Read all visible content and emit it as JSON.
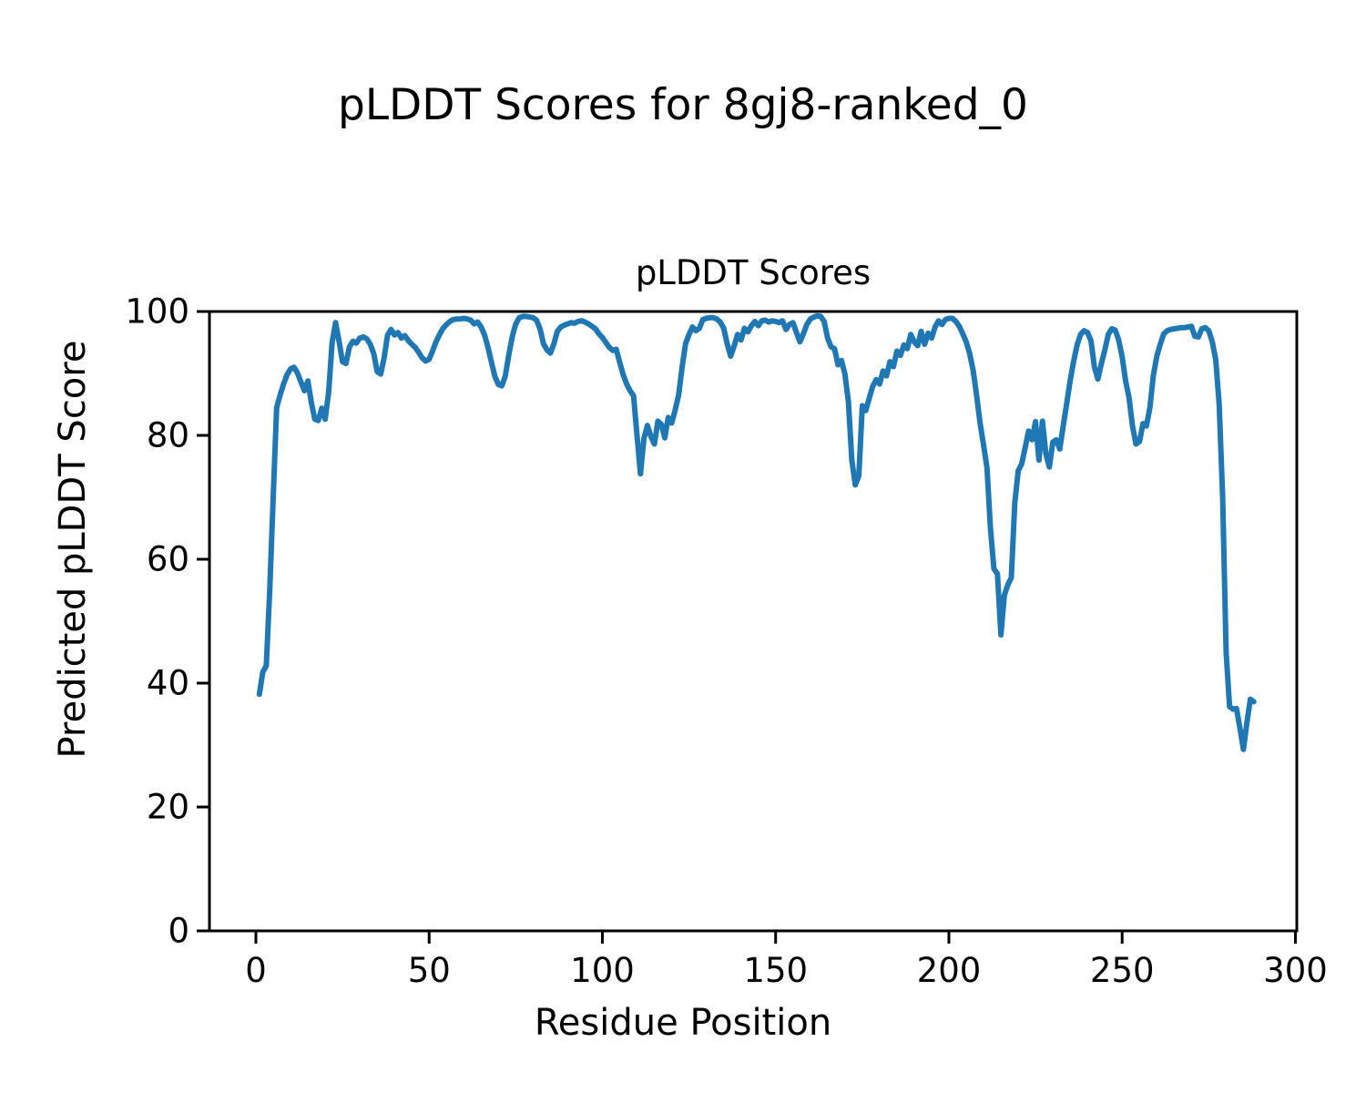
{
  "figure": {
    "suptitle": "pLDDT Scores for 8gj8-ranked_0",
    "background_color": "#ffffff"
  },
  "axes": {
    "title": "pLDDT Scores",
    "xlabel": "Residue Position",
    "ylabel": "Predicted pLDDT Score",
    "xticks": [
      0,
      50,
      100,
      150,
      200,
      250,
      300
    ],
    "yticks": [
      0,
      20,
      40,
      60,
      80,
      100
    ],
    "spine_color": "#000000",
    "tick_color": "#000000"
  },
  "chart_data": {
    "type": "line",
    "title": "pLDDT Scores",
    "suptitle": "pLDDT Scores for 8gj8-ranked_0",
    "xlabel": "Residue Position",
    "ylabel": "Predicted pLDDT Score",
    "line_color": "#1f77b4",
    "grid": false,
    "legend": null,
    "xlim": [
      -13.4,
      300.4
    ],
    "ylim": [
      0,
      100
    ],
    "xticks": [
      0,
      50,
      100,
      150,
      200,
      250,
      300
    ],
    "yticks": [
      0,
      20,
      40,
      60,
      80,
      100
    ],
    "x_start": 1,
    "x_step": 1,
    "values": [
      38.2,
      41.8,
      42.8,
      55.0,
      70.0,
      84.5,
      86.5,
      88.3,
      89.8,
      90.7,
      91.0,
      90.1,
      88.6,
      87.2,
      88.8,
      85.3,
      82.6,
      82.4,
      84.4,
      82.6,
      87.0,
      95.0,
      98.2,
      95.2,
      91.9,
      91.6,
      94.3,
      95.2,
      94.9,
      95.7,
      95.9,
      95.6,
      94.7,
      93.2,
      90.3,
      89.9,
      92.5,
      96.2,
      97.1,
      96.2,
      96.6,
      95.7,
      96.1,
      95.3,
      94.7,
      94.2,
      93.4,
      92.5,
      92.0,
      92.3,
      93.6,
      95.1,
      96.3,
      97.3,
      97.9,
      98.4,
      98.7,
      98.8,
      98.8,
      98.9,
      98.8,
      98.6,
      98.0,
      98.3,
      97.5,
      96.2,
      94.2,
      91.8,
      89.5,
      88.2,
      88.0,
      89.6,
      93.0,
      96.0,
      98.0,
      99.0,
      99.2,
      99.2,
      99.1,
      99.0,
      98.6,
      97.2,
      94.8,
      93.8,
      93.3,
      94.8,
      96.8,
      97.5,
      97.8,
      98.0,
      98.2,
      98.1,
      98.4,
      98.5,
      98.3,
      98.0,
      97.6,
      97.2,
      96.4,
      95.8,
      95.0,
      94.2,
      93.7,
      93.9,
      91.8,
      89.8,
      88.3,
      87.2,
      86.4,
      80.0,
      73.8,
      79.5,
      81.6,
      79.8,
      78.6,
      82.3,
      81.8,
      79.6,
      82.9,
      82.0,
      84.1,
      86.5,
      91.0,
      94.8,
      96.3,
      97.5,
      96.9,
      97.3,
      98.7,
      98.9,
      99.0,
      99.0,
      98.8,
      98.3,
      97.3,
      94.8,
      92.8,
      94.4,
      96.3,
      95.4,
      97.3,
      96.7,
      97.7,
      98.4,
      97.7,
      98.5,
      98.6,
      98.3,
      98.5,
      98.4,
      98.2,
      98.5,
      97.1,
      97.9,
      98.2,
      96.6,
      95.1,
      96.4,
      97.9,
      98.8,
      99.1,
      99.3,
      99.2,
      98.4,
      95.7,
      94.3,
      94.0,
      91.4,
      92.1,
      89.9,
      85.5,
      76.0,
      72.0,
      73.5,
      84.8,
      84.0,
      86.0,
      87.9,
      89.0,
      88.3,
      90.4,
      89.6,
      91.9,
      91.1,
      93.6,
      92.9,
      94.6,
      94.0,
      96.3,
      95.1,
      94.5,
      96.8,
      94.7,
      96.5,
      95.7,
      97.5,
      98.5,
      97.9,
      98.7,
      98.9,
      98.9,
      98.4,
      97.6,
      96.4,
      95.1,
      93.2,
      90.5,
      86.5,
      82.0,
      78.5,
      74.8,
      65.0,
      58.5,
      57.6,
      47.8,
      54.2,
      55.9,
      57.0,
      69.0,
      74.3,
      75.4,
      78.0,
      80.7,
      79.3,
      82.2,
      76.0,
      82.3,
      77.0,
      74.9,
      78.9,
      79.3,
      77.8,
      81.5,
      85.1,
      88.9,
      92.0,
      94.6,
      96.3,
      96.9,
      96.6,
      95.3,
      91.0,
      89.1,
      91.6,
      93.8,
      96.3,
      97.2,
      97.0,
      95.4,
      92.7,
      88.8,
      86.1,
      81.5,
      78.6,
      79.0,
      81.9,
      81.5,
      84.5,
      89.7,
      92.8,
      94.7,
      96.4,
      96.9,
      97.1,
      97.2,
      97.3,
      97.4,
      97.4,
      97.5,
      97.6,
      96.0,
      95.9,
      97.2,
      97.4,
      96.9,
      95.1,
      92.2,
      85.0,
      70.0,
      45.0,
      36.2,
      35.8,
      35.9,
      32.7,
      29.3,
      33.6,
      37.4,
      37.0
    ]
  }
}
